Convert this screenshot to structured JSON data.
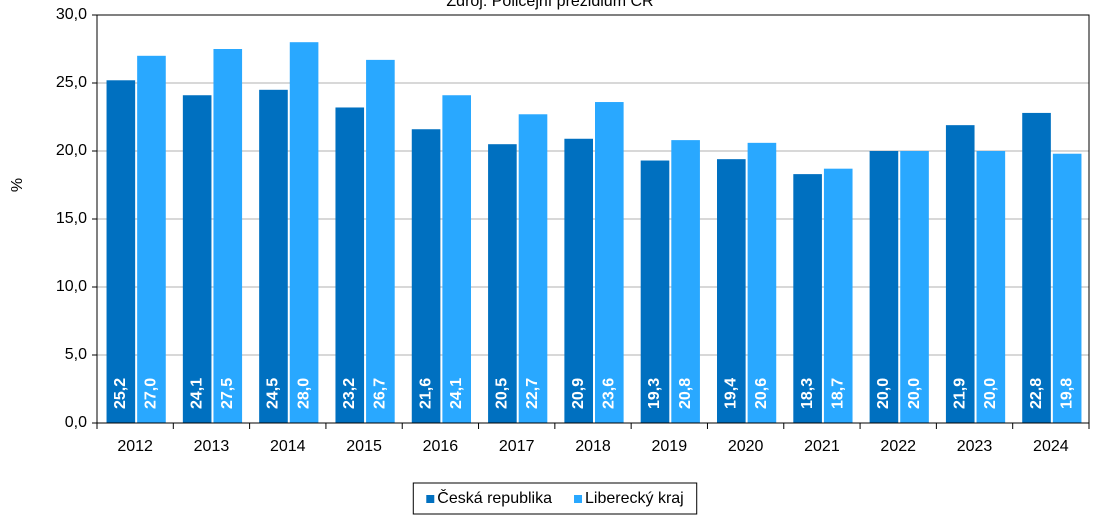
{
  "chart_data": {
    "type": "bar",
    "title": "Zdroj: Policejní prezidium ČR",
    "y_label": "%",
    "categories": [
      "2012",
      "2013",
      "2014",
      "2015",
      "2016",
      "2017",
      "2018",
      "2019",
      "2020",
      "2021",
      "2022",
      "2023",
      "2024"
    ],
    "series": [
      {
        "name": "Česká republika",
        "color": "#0070c0",
        "values": [
          25.2,
          24.1,
          24.5,
          23.2,
          21.6,
          20.5,
          20.9,
          19.3,
          19.4,
          18.3,
          20.0,
          21.9,
          22.8
        ],
        "value_labels": [
          "25,2",
          "24,1",
          "24,5",
          "23,2",
          "21,6",
          "20,5",
          "20,9",
          "19,3",
          "19,4",
          "18,3",
          "20,0",
          "21,9",
          "22,8"
        ]
      },
      {
        "name": "Liberecký kraj",
        "color": "#29a8ff",
        "values": [
          27.0,
          27.5,
          28.0,
          26.7,
          24.1,
          22.7,
          23.6,
          20.8,
          20.6,
          18.7,
          20.0,
          20.0,
          19.8
        ],
        "value_labels": [
          "27,0",
          "27,5",
          "28,0",
          "26,7",
          "24,1",
          "22,7",
          "23,6",
          "20,8",
          "20,6",
          "18,7",
          "20,0",
          "20,0",
          "19,8"
        ]
      }
    ],
    "ylim": [
      0,
      30
    ],
    "yticks": [
      {
        "value": 0,
        "label": "0,0"
      },
      {
        "value": 5,
        "label": "5,0"
      },
      {
        "value": 10,
        "label": "10,0"
      },
      {
        "value": 15,
        "label": "15,0"
      },
      {
        "value": 20,
        "label": "20,0"
      },
      {
        "value": 25,
        "label": "25,0"
      },
      {
        "value": 30,
        "label": "30,0"
      }
    ],
    "grid": true,
    "legend": "bottom"
  }
}
